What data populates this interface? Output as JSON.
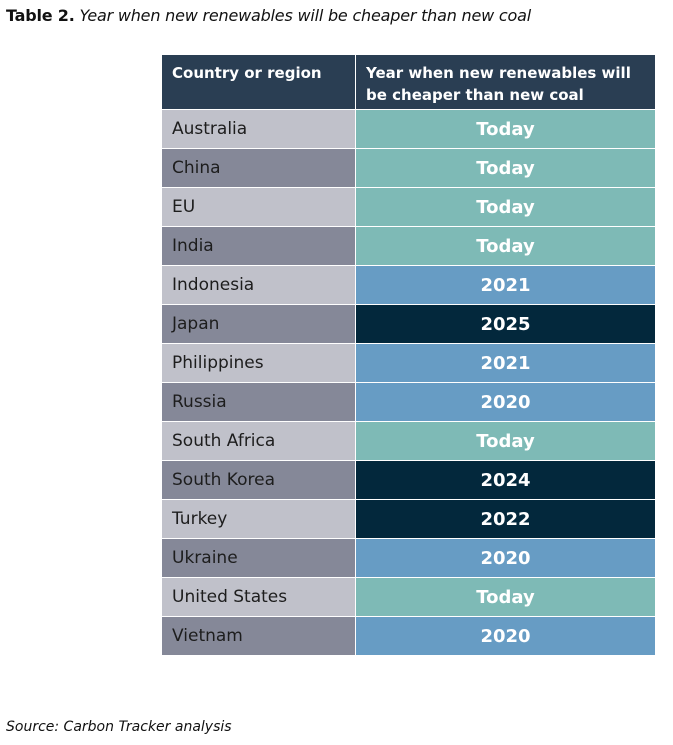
{
  "caption": {
    "label": "Table 2.",
    "title": "Year when new renewables will be cheaper than new coal"
  },
  "table": {
    "headers": [
      "Country or region",
      "Year when new renewables will be cheaper than new coal"
    ],
    "rows": [
      {
        "country": "Australia",
        "year": "Today"
      },
      {
        "country": "China",
        "year": "Today"
      },
      {
        "country": "EU",
        "year": "Today"
      },
      {
        "country": "India",
        "year": "Today"
      },
      {
        "country": "Indonesia",
        "year": "2021"
      },
      {
        "country": "Japan",
        "year": "2025"
      },
      {
        "country": "Philippines",
        "year": "2021"
      },
      {
        "country": "Russia",
        "year": "2020"
      },
      {
        "country": "South Africa",
        "year": "Today"
      },
      {
        "country": "South Korea",
        "year": "2024"
      },
      {
        "country": "Turkey",
        "year": "2022"
      },
      {
        "country": "Ukraine",
        "year": "2020"
      },
      {
        "country": "United States",
        "year": "Today"
      },
      {
        "country": "Vietnam",
        "year": "2020"
      }
    ]
  },
  "colors": {
    "header_bg": "#2a3e53",
    "country_light": "#c0c1ca",
    "country_dark": "#858898",
    "year_today": "#7ebab6",
    "year_2020_2021": "#679cc4",
    "year_2022_plus": "#03283c"
  },
  "source": "Source: Carbon Tracker analysis"
}
